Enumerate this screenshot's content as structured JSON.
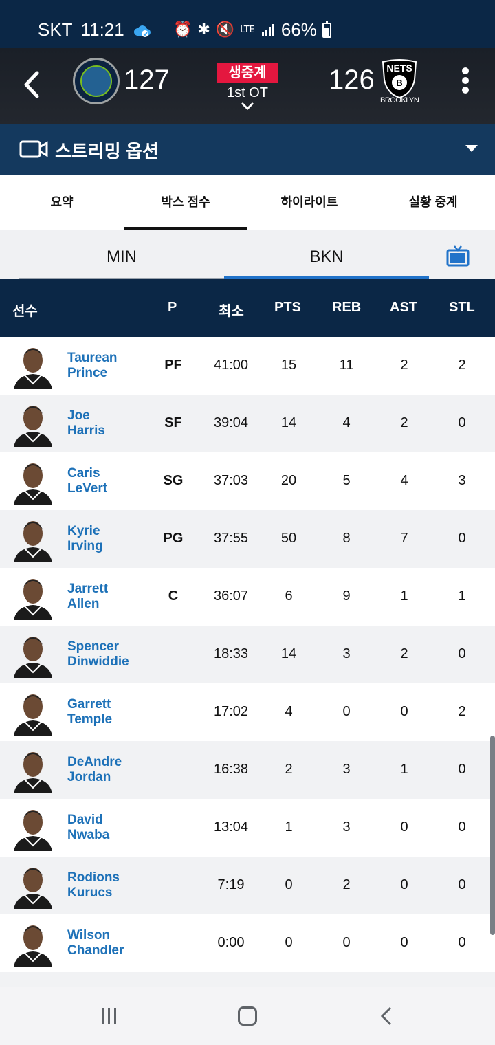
{
  "status_bar": {
    "carrier": "SKT",
    "time": "11:21",
    "network": "LTE",
    "battery": "66%"
  },
  "scoreboard": {
    "home_team": "MIN",
    "home_score": "127",
    "away_team_label": "BROOKLYN",
    "away_logo_text": "NETS",
    "away_score": "126",
    "live_badge": "생중계",
    "period": "1st OT"
  },
  "streaming": {
    "label": "스트리밍 옵션"
  },
  "tabs": [
    {
      "label": "요약",
      "active": false
    },
    {
      "label": "박스 점수",
      "active": true
    },
    {
      "label": "하이라이트",
      "active": false
    },
    {
      "label": "실황 중계",
      "active": false
    }
  ],
  "team_switch": {
    "left": "MIN",
    "right": "BKN",
    "selected": "BKN"
  },
  "table": {
    "headers": {
      "player": "선수",
      "pos": "P",
      "min": "최소",
      "pts": "PTS",
      "reb": "REB",
      "ast": "AST",
      "stl": "STL"
    },
    "rows": [
      {
        "first": "Taurean",
        "last": "Prince",
        "pos": "PF",
        "min": "41:00",
        "pts": "15",
        "reb": "11",
        "ast": "2",
        "stl": "2"
      },
      {
        "first": "Joe",
        "last": "Harris",
        "pos": "SF",
        "min": "39:04",
        "pts": "14",
        "reb": "4",
        "ast": "2",
        "stl": "0"
      },
      {
        "first": "Caris",
        "last": "LeVert",
        "pos": "SG",
        "min": "37:03",
        "pts": "20",
        "reb": "5",
        "ast": "4",
        "stl": "3"
      },
      {
        "first": "Kyrie",
        "last": "Irving",
        "pos": "PG",
        "min": "37:55",
        "pts": "50",
        "reb": "8",
        "ast": "7",
        "stl": "0"
      },
      {
        "first": "Jarrett",
        "last": "Allen",
        "pos": "C",
        "min": "36:07",
        "pts": "6",
        "reb": "9",
        "ast": "1",
        "stl": "1"
      },
      {
        "first": "Spencer",
        "last": "Dinwiddie",
        "pos": "",
        "min": "18:33",
        "pts": "14",
        "reb": "3",
        "ast": "2",
        "stl": "0"
      },
      {
        "first": "Garrett",
        "last": "Temple",
        "pos": "",
        "min": "17:02",
        "pts": "4",
        "reb": "0",
        "ast": "0",
        "stl": "2"
      },
      {
        "first": "DeAndre",
        "last": "Jordan",
        "pos": "",
        "min": "16:38",
        "pts": "2",
        "reb": "3",
        "ast": "1",
        "stl": "0"
      },
      {
        "first": "David",
        "last": "Nwaba",
        "pos": "",
        "min": "13:04",
        "pts": "1",
        "reb": "3",
        "ast": "0",
        "stl": "0"
      },
      {
        "first": "Rodions",
        "last": "Kurucs",
        "pos": "",
        "min": "7:19",
        "pts": "0",
        "reb": "2",
        "ast": "0",
        "stl": "0"
      },
      {
        "first": "Wilson",
        "last": "Chandler",
        "pos": "",
        "min": "0:00",
        "pts": "0",
        "reb": "0",
        "ast": "0",
        "stl": "0"
      }
    ]
  },
  "colors": {
    "header_navy": "#0b2746",
    "stream_blue": "#14395e",
    "live_red": "#e4173f",
    "link_blue": "#1d71b8",
    "selected_underline": "#2173c9"
  }
}
